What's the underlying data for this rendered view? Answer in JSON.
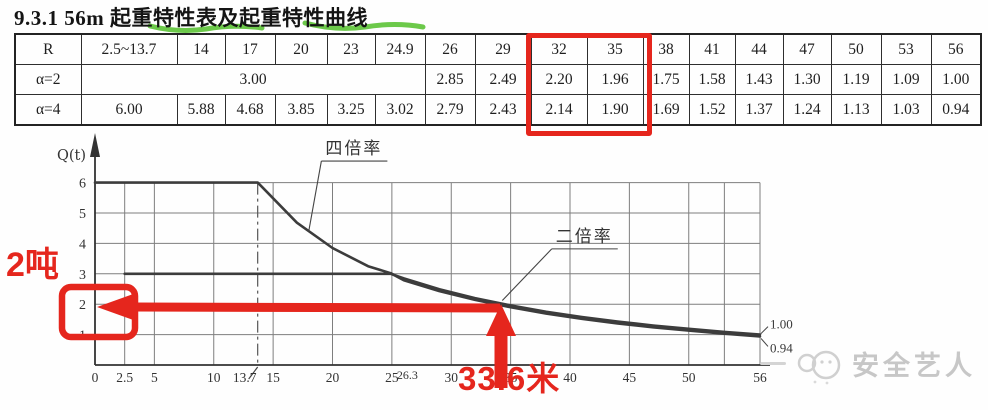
{
  "title": "9.3.1 56m 起重特性表及起重特性曲线",
  "table": {
    "header": [
      "R",
      "2.5~13.7",
      "14",
      "17",
      "20",
      "23",
      "24.9",
      "26",
      "29",
      "32",
      "35",
      "38",
      "41",
      "44",
      "47",
      "50",
      "53",
      "56"
    ],
    "rows": [
      {
        "label": "α=2",
        "cells": [
          {
            "text": "3.00",
            "span": 6
          },
          {
            "text": "2.85"
          },
          {
            "text": "2.49"
          },
          {
            "text": "2.20"
          },
          {
            "text": "1.96"
          },
          {
            "text": "1.75"
          },
          {
            "text": "1.58"
          },
          {
            "text": "1.43"
          },
          {
            "text": "1.30"
          },
          {
            "text": "1.19"
          },
          {
            "text": "1.09"
          },
          {
            "text": "1.00"
          }
        ]
      },
      {
        "label": "α=4",
        "cells": [
          {
            "text": "6.00",
            "span": 1
          },
          {
            "text": "5.88"
          },
          {
            "text": "4.68"
          },
          {
            "text": "3.85"
          },
          {
            "text": "3.25"
          },
          {
            "text": "3.02"
          },
          {
            "text": "2.79"
          },
          {
            "text": "2.43"
          },
          {
            "text": "2.14"
          },
          {
            "text": "1.90"
          },
          {
            "text": "1.69"
          },
          {
            "text": "1.52"
          },
          {
            "text": "1.37"
          },
          {
            "text": "1.24"
          },
          {
            "text": "1.13"
          },
          {
            "text": "1.03"
          },
          {
            "text": "0.94"
          }
        ]
      }
    ],
    "highlighted_columns": [
      "32",
      "35"
    ]
  },
  "chart_data": {
    "type": "line",
    "title": "",
    "xlabel": "",
    "ylabel": "Q(t)",
    "xlim": [
      0,
      56
    ],
    "ylim": [
      0,
      6.6
    ],
    "x_ticks": [
      0,
      2.5,
      5,
      10,
      13.7,
      15,
      20,
      25,
      26.3,
      30,
      35,
      40,
      45,
      50,
      56
    ],
    "minor_ticks": [
      26.3
    ],
    "y_ticks": [
      1,
      2,
      3,
      4,
      5,
      6
    ],
    "grid_x": [
      2.5,
      5,
      10,
      15,
      20,
      25,
      30,
      35,
      40,
      45,
      50,
      53,
      56
    ],
    "grid_y": [
      1,
      2,
      3,
      4,
      5,
      6
    ],
    "dashed_x": 13.7,
    "grid": "on",
    "series": [
      {
        "name": "四倍率",
        "x": [
          0,
          13.7,
          14,
          17,
          20,
          23,
          24.9,
          26,
          29,
          32,
          35,
          38,
          41,
          44,
          47,
          50,
          53,
          56
        ],
        "y": [
          6.0,
          6.0,
          5.88,
          4.68,
          3.85,
          3.25,
          3.02,
          2.79,
          2.43,
          2.14,
          1.9,
          1.69,
          1.52,
          1.37,
          1.24,
          1.13,
          1.03,
          0.94
        ],
        "end_label": "0.94"
      },
      {
        "name": "二倍率",
        "x": [
          2.5,
          24.9,
          26,
          29,
          32,
          35,
          38,
          41,
          44,
          47,
          50,
          53,
          56
        ],
        "y": [
          3.0,
          3.0,
          2.85,
          2.49,
          2.2,
          1.96,
          1.75,
          1.58,
          1.43,
          1.3,
          1.19,
          1.09,
          1.0
        ],
        "end_label": "1.00"
      }
    ],
    "curve_labels": [
      {
        "text": "四倍率",
        "point": [
          18,
          4.4
        ],
        "label_point": [
          19.4,
          6.94
        ]
      },
      {
        "text": "二倍率",
        "point": [
          34.3,
          2.12
        ],
        "label_point": [
          38.8,
          4.05
        ]
      }
    ]
  },
  "red_annotations": {
    "color": "#e5261d",
    "tons_label": "2吨",
    "meters_label": "33.6米",
    "arrow_target": {
      "radius_m": 33.6,
      "load_t": 2
    }
  },
  "watermark": {
    "text": "安全艺人"
  }
}
